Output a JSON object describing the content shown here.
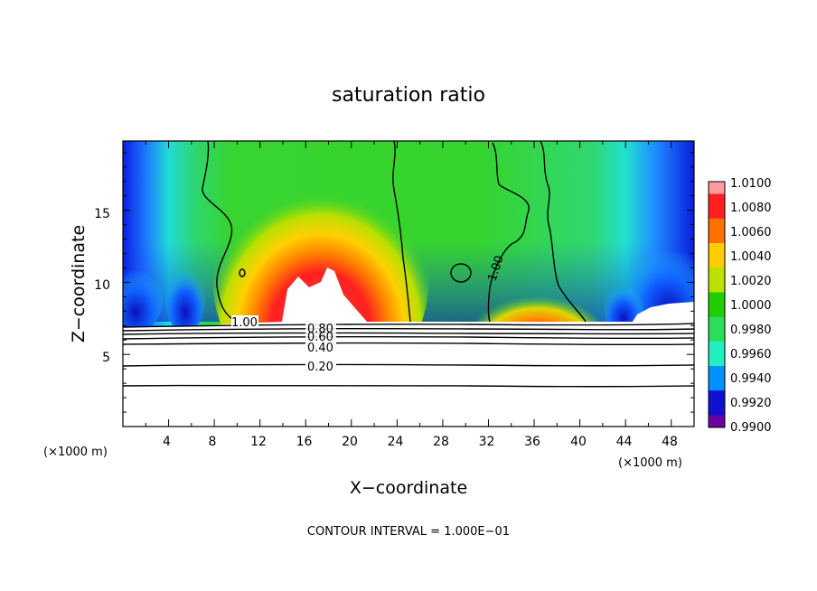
{
  "chart_data": {
    "type": "heatmap",
    "title": "saturation ratio",
    "xlabel": "X−coordinate",
    "ylabel": "Z−coordinate",
    "x_unit_left": "(×1000 m)",
    "x_unit_right": "(×1000 m)",
    "footer": "CONTOUR INTERVAL = 1.000E−01",
    "xlim": [
      0,
      50
    ],
    "ylim": [
      0,
      19.8
    ],
    "x_ticks": [
      "4",
      "8",
      "12",
      "16",
      "20",
      "24",
      "28",
      "32",
      "36",
      "40",
      "44",
      "48"
    ],
    "y_ticks": [
      "5",
      "10",
      "15"
    ],
    "colorbar": {
      "labels": [
        "1.0100",
        "1.0080",
        "1.0060",
        "1.0040",
        "1.0020",
        "1.0000",
        "0.9980",
        "0.9960",
        "0.9940",
        "0.9920",
        "0.9900"
      ],
      "colors": [
        "#ff9aa0",
        "#ff2020",
        "#ff7000",
        "#ffcc00",
        "#bce000",
        "#22cc00",
        "#2ddd5a",
        "#22eec0",
        "#0090ff",
        "#1010d0",
        "#6a00a0"
      ]
    },
    "contour_labels": [
      "1.00",
      "1.00",
      "0.80",
      "0.60",
      "0.40",
      "0.20"
    ]
  }
}
